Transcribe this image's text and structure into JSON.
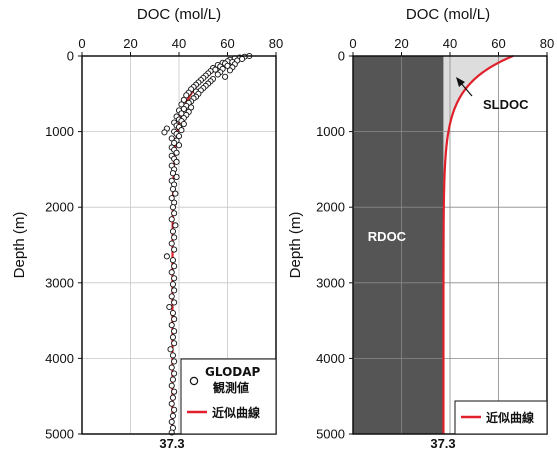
{
  "chart_data": [
    {
      "type": "scatter",
      "xlabel": "DOC (mol/L)",
      "ylabel": "Depth (m)",
      "xlim": [
        0,
        80
      ],
      "ylim": [
        5000,
        0
      ],
      "xticks": [
        0,
        20,
        40,
        60,
        80
      ],
      "yticks": [
        0,
        1000,
        2000,
        3000,
        4000,
        5000
      ],
      "x_axis_position": "top",
      "grid": true,
      "asymptote_label": "37.3",
      "legend": {
        "placement": "bottom-right",
        "entries": [
          {
            "label_line1": "GLODAP",
            "label_line2": "観測値",
            "marker": "circle"
          },
          {
            "label": "近似曲線",
            "marker": "line",
            "color": "#e0202a"
          }
        ]
      },
      "series": [
        {
          "name": "GLODAP 観測値",
          "kind": "points",
          "points": [
            [
              69,
              0
            ],
            [
              67,
              10
            ],
            [
              65,
              20
            ],
            [
              63,
              30
            ],
            [
              66,
              40
            ],
            [
              61,
              50
            ],
            [
              64,
              60
            ],
            [
              60,
              70
            ],
            [
              62,
              80
            ],
            [
              58,
              90
            ],
            [
              59,
              100
            ],
            [
              63,
              110
            ],
            [
              56,
              120
            ],
            [
              60,
              130
            ],
            [
              57,
              140
            ],
            [
              62,
              150
            ],
            [
              54,
              160
            ],
            [
              58,
              170
            ],
            [
              55,
              180
            ],
            [
              61,
              190
            ],
            [
              53,
              200
            ],
            [
              57,
              215
            ],
            [
              52,
              230
            ],
            [
              56,
              245
            ],
            [
              51,
              260
            ],
            [
              59,
              275
            ],
            [
              50,
              290
            ],
            [
              54,
              305
            ],
            [
              49,
              320
            ],
            [
              53,
              335
            ],
            [
              48,
              350
            ],
            [
              52,
              365
            ],
            [
              47,
              380
            ],
            [
              51,
              395
            ],
            [
              46,
              410
            ],
            [
              50,
              425
            ],
            [
              45,
              440
            ],
            [
              49,
              455
            ],
            [
              47,
              470
            ],
            [
              44,
              485
            ],
            [
              48,
              500
            ],
            [
              43,
              520
            ],
            [
              47,
              540
            ],
            [
              46,
              560
            ],
            [
              42,
              580
            ],
            [
              45,
              600
            ],
            [
              44,
              620
            ],
            [
              41,
              640
            ],
            [
              43,
              660
            ],
            [
              45,
              680
            ],
            [
              42,
              700
            ],
            [
              40,
              720
            ],
            [
              44,
              740
            ],
            [
              41,
              760
            ],
            [
              43,
              780
            ],
            [
              39,
              800
            ],
            [
              42,
              820
            ],
            [
              40,
              840
            ],
            [
              41,
              860
            ],
            [
              38,
              880
            ],
            [
              42,
              900
            ],
            [
              39,
              920
            ],
            [
              40,
              940
            ],
            [
              35,
              960
            ],
            [
              41,
              980
            ],
            [
              38,
              1000
            ],
            [
              34,
              1010
            ],
            [
              39,
              1030
            ],
            [
              40,
              1060
            ],
            [
              37,
              1090
            ],
            [
              39,
              1120
            ],
            [
              38,
              1150
            ],
            [
              40,
              1180
            ],
            [
              37,
              1210
            ],
            [
              38,
              1240
            ],
            [
              39,
              1280
            ],
            [
              37,
              1320
            ],
            [
              38,
              1360
            ],
            [
              39,
              1400
            ],
            [
              37,
              1450
            ],
            [
              38,
              1500
            ],
            [
              37.5,
              1550
            ],
            [
              39,
              1600
            ],
            [
              37,
              1650
            ],
            [
              38,
              1700
            ],
            [
              37.5,
              1760
            ],
            [
              38.5,
              1820
            ],
            [
              37,
              1880
            ],
            [
              38,
              1940
            ],
            [
              37.5,
              2000
            ],
            [
              38,
              2080
            ],
            [
              37,
              2160
            ],
            [
              38.5,
              2240
            ],
            [
              37.5,
              2320
            ],
            [
              38,
              2400
            ],
            [
              37,
              2480
            ],
            [
              38,
              2560
            ],
            [
              35,
              2650
            ],
            [
              37.5,
              2700
            ],
            [
              38,
              2780
            ],
            [
              37,
              2860
            ],
            [
              38,
              2940
            ],
            [
              37.5,
              3020
            ],
            [
              38,
              3100
            ],
            [
              37,
              3180
            ],
            [
              38,
              3260
            ],
            [
              36,
              3320
            ],
            [
              37.5,
              3400
            ],
            [
              38,
              3480
            ],
            [
              37,
              3560
            ],
            [
              38,
              3640
            ],
            [
              37.5,
              3720
            ],
            [
              38,
              3800
            ],
            [
              36.5,
              3880
            ],
            [
              37.5,
              3960
            ],
            [
              38,
              4040
            ],
            [
              37,
              4120
            ],
            [
              38,
              4200
            ],
            [
              37.5,
              4280
            ],
            [
              37,
              4360
            ],
            [
              38,
              4440
            ],
            [
              37.5,
              4520
            ],
            [
              37,
              4600
            ],
            [
              38,
              4680
            ],
            [
              37.5,
              4760
            ],
            [
              37,
              4840
            ],
            [
              37.5,
              4920
            ],
            [
              37,
              4980
            ]
          ]
        },
        {
          "name": "近似曲線",
          "kind": "curve",
          "color": "#e0202a",
          "asymptote": 37.3,
          "surface_excess": 28.7,
          "efold_depth": 380
        }
      ]
    },
    {
      "type": "area",
      "xlabel": "DOC (mol/L)",
      "ylabel": "Depth (m)",
      "xlim": [
        0,
        80
      ],
      "ylim": [
        5000,
        0
      ],
      "xticks": [
        0,
        20,
        40,
        60,
        80
      ],
      "yticks": [
        0,
        1000,
        2000,
        3000,
        4000,
        5000
      ],
      "x_axis_position": "top",
      "grid": true,
      "asymptote_label": "37.3",
      "regions": [
        {
          "label": "RDOC",
          "range": [
            0,
            37.3
          ],
          "color": "#555555",
          "label_color": "#ffffff",
          "label_at": [
            14,
            2450
          ]
        },
        {
          "label": "SLDOC",
          "color": "#dddddd",
          "label_color": "#111111",
          "label_at": [
            63,
            700
          ]
        }
      ],
      "legend": {
        "placement": "bottom-right",
        "entries": [
          {
            "label": "近似曲線",
            "marker": "line",
            "color": "#e0202a"
          }
        ]
      },
      "series": [
        {
          "name": "近似曲線",
          "kind": "curve",
          "color": "#e0202a",
          "asymptote": 37.3,
          "surface_excess": 28.7,
          "efold_depth": 380
        }
      ]
    }
  ]
}
